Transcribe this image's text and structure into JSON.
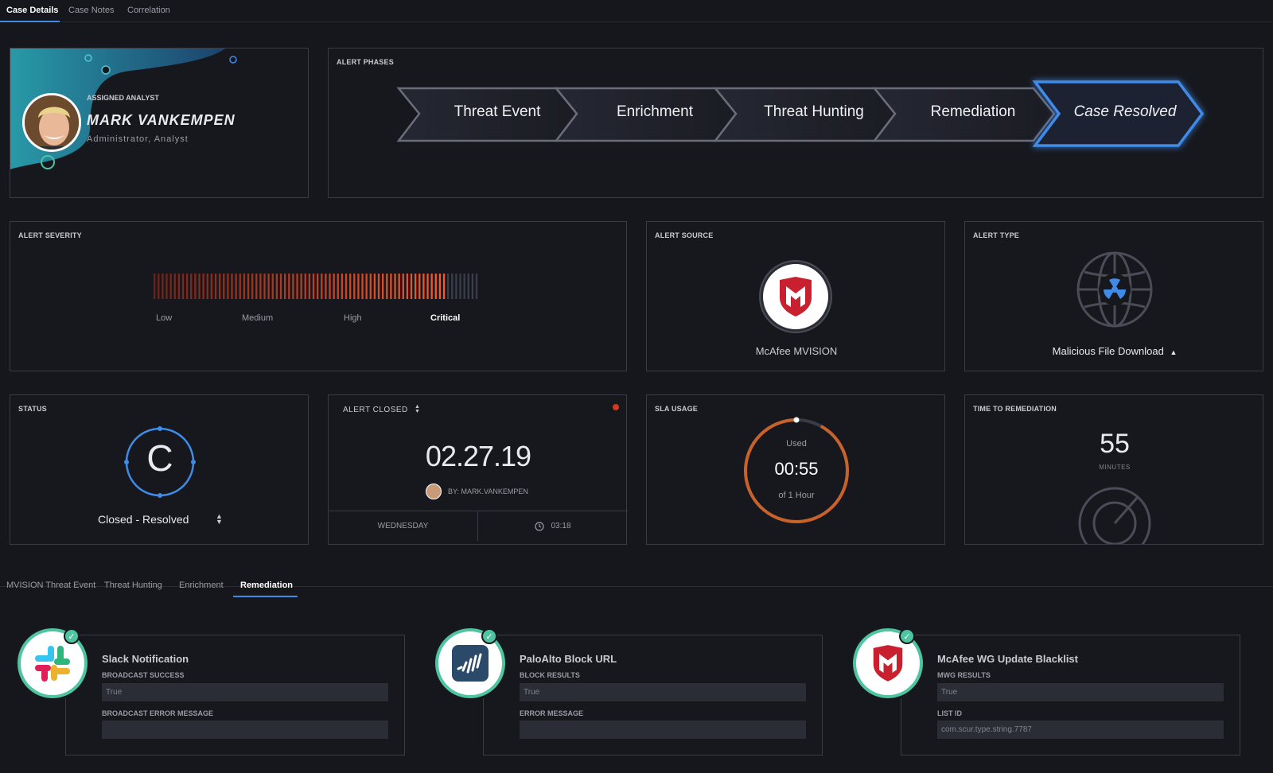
{
  "top_tabs": [
    {
      "label": "Case Details",
      "active": true
    },
    {
      "label": "Case Notes",
      "active": false
    },
    {
      "label": "Correlation",
      "active": false
    }
  ],
  "analyst": {
    "label": "ASSIGNED ANALYST",
    "name": "MARK VANKEMPEN",
    "role": "Administrator, Analyst"
  },
  "phases": {
    "title": "ALERT PHASES",
    "items": [
      "Threat Event",
      "Enrichment",
      "Threat Hunting",
      "Remediation",
      "Case Resolved"
    ],
    "current_index": 4
  },
  "severity": {
    "title": "ALERT SEVERITY",
    "levels": [
      "Low",
      "Medium",
      "High",
      "Critical"
    ],
    "current": "Critical",
    "filled_fraction": 0.9
  },
  "source": {
    "title": "ALERT SOURCE",
    "name": "McAfee MVISION",
    "icon": "mcafee-shield-icon"
  },
  "alert_type": {
    "title": "ALERT TYPE",
    "value": "Malicious File Download",
    "icon": "globe-radiation-icon"
  },
  "status": {
    "title": "STATUS",
    "letter": "C",
    "value": "Closed - Resolved"
  },
  "alert_closed": {
    "title": "ALERT CLOSED",
    "date": "02.27.19",
    "by": "BY: MARK.VANKEMPEN",
    "day": "WEDNESDAY",
    "time": "03:18"
  },
  "sla": {
    "title": "SLA USAGE",
    "used_label": "Used",
    "value": "00:55",
    "of_label": "of 1 Hour",
    "used_fraction": 0.92
  },
  "ttr": {
    "title": "TIME TO REMEDIATION",
    "value": "55",
    "unit": "MINUTES"
  },
  "sub_tabs": [
    {
      "label": "MVISION Threat Event",
      "active": false
    },
    {
      "label": "Threat Hunting",
      "active": false
    },
    {
      "label": "Enrichment",
      "active": false
    },
    {
      "label": "Remediation",
      "active": true
    }
  ],
  "remediations": [
    {
      "title": "Slack Notification",
      "icon": "slack-icon",
      "field1_label": "BROADCAST SUCCESS",
      "field1_value": "True",
      "field2_label": "BROADCAST ERROR MESSAGE",
      "field2_value": ""
    },
    {
      "title": "PaloAlto Block URL",
      "icon": "paloalto-icon",
      "field1_label": "BLOCK RESULTS",
      "field1_value": "True",
      "field2_label": "ERROR MESSAGE",
      "field2_value": ""
    },
    {
      "title": "McAfee WG Update Blacklist",
      "icon": "mcafee-shield-icon",
      "field1_label": "MWG RESULTS",
      "field1_value": "True",
      "field2_label": "LIST ID",
      "field2_value": "com.scur.type.string.7787"
    }
  ],
  "colors": {
    "accent_blue": "#3f8be8",
    "severity_red": "#e8502a",
    "sla_orange": "#c8622a",
    "success_green": "#4fc4a0",
    "mcafee_red": "#c8202f"
  }
}
